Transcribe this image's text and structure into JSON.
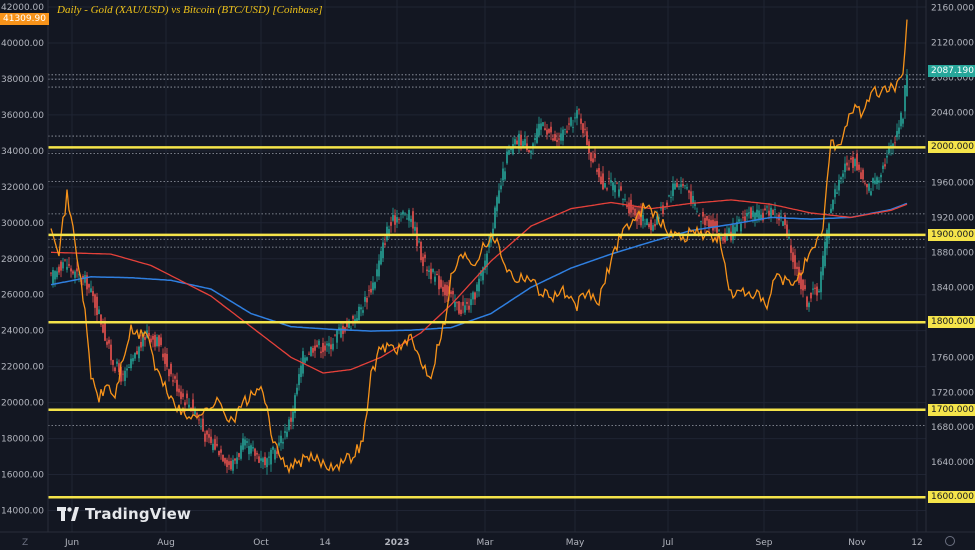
{
  "chart_data": {
    "type": "line",
    "title": "Daily - Gold (XAU/USD) vs Bitcoin (BTC/USD) [Coinbase]",
    "brand": "TradingView",
    "x_tick_labels": [
      "Jun",
      "Aug",
      "Oct",
      "14",
      "2023",
      "Mar",
      "May",
      "Jul",
      "Sep",
      "Nov",
      "12"
    ],
    "left_axis": {
      "series": "Bitcoin (BTC/USD)",
      "range": [
        14000,
        42000
      ],
      "ticks": [
        "42000.00",
        "40000.00",
        "38000.00",
        "36000.00",
        "34000.00",
        "32000.00",
        "30000.00",
        "28000.00",
        "26000.00",
        "24000.00",
        "22000.00",
        "20000.00",
        "18000.00",
        "16000.00",
        "14000.00"
      ],
      "last_price_label": "41309.90"
    },
    "right_axis": {
      "series": "Gold (XAU/USD)",
      "range": [
        1590,
        2160
      ],
      "ticks": [
        "2160.000",
        "2120.000",
        "2080.000",
        "2040.000",
        "2000.000",
        "1960.000",
        "1920.000",
        "1880.000",
        "1840.000",
        "1800.000",
        "1760.000",
        "1720.000",
        "1700.000",
        "1680.000",
        "1640.000",
        "1600.000"
      ],
      "last_price_label": "2087.190"
    },
    "horizontal_levels": [
      {
        "value": 2000,
        "label": "2000.000"
      },
      {
        "value": 1900,
        "label": "1900.000"
      },
      {
        "value": 1800,
        "label": "1800.000"
      },
      {
        "value": 1700,
        "label": "1700.000"
      },
      {
        "value": 1600,
        "label": "1600.000"
      }
    ],
    "dotted_levels": [
      2083,
      2078,
      2069,
      2013,
      1993,
      1961,
      1924,
      1895,
      1886,
      1682
    ],
    "gold_candles_anchors": [
      [
        0,
        1850
      ],
      [
        6,
        1870
      ],
      [
        12,
        1855
      ],
      [
        18,
        1845
      ],
      [
        24,
        1810
      ],
      [
        30,
        1760
      ],
      [
        36,
        1735
      ],
      [
        42,
        1760
      ],
      [
        48,
        1790
      ],
      [
        54,
        1775
      ],
      [
        60,
        1740
      ],
      [
        66,
        1715
      ],
      [
        72,
        1700
      ],
      [
        78,
        1665
      ],
      [
        84,
        1655
      ],
      [
        90,
        1635
      ],
      [
        96,
        1660
      ],
      [
        102,
        1650
      ],
      [
        108,
        1640
      ],
      [
        114,
        1660
      ],
      [
        120,
        1690
      ],
      [
        126,
        1760
      ],
      [
        132,
        1775
      ],
      [
        138,
        1770
      ],
      [
        144,
        1790
      ],
      [
        150,
        1800
      ],
      [
        156,
        1820
      ],
      [
        162,
        1850
      ],
      [
        168,
        1905
      ],
      [
        174,
        1925
      ],
      [
        180,
        1920
      ],
      [
        186,
        1870
      ],
      [
        192,
        1850
      ],
      [
        198,
        1835
      ],
      [
        204,
        1815
      ],
      [
        210,
        1820
      ],
      [
        216,
        1860
      ],
      [
        222,
        1925
      ],
      [
        228,
        1990
      ],
      [
        234,
        2010
      ],
      [
        240,
        2000
      ],
      [
        246,
        2030
      ],
      [
        252,
        2005
      ],
      [
        258,
        2020
      ],
      [
        264,
        2040
      ],
      [
        270,
        1990
      ],
      [
        276,
        1960
      ],
      [
        282,
        1955
      ],
      [
        288,
        1935
      ],
      [
        294,
        1920
      ],
      [
        300,
        1910
      ],
      [
        306,
        1930
      ],
      [
        312,
        1960
      ],
      [
        318,
        1955
      ],
      [
        324,
        1920
      ],
      [
        330,
        1915
      ],
      [
        336,
        1895
      ],
      [
        342,
        1905
      ],
      [
        348,
        1925
      ],
      [
        354,
        1920
      ],
      [
        360,
        1930
      ],
      [
        366,
        1915
      ],
      [
        372,
        1865
      ],
      [
        378,
        1825
      ],
      [
        384,
        1840
      ],
      [
        390,
        1935
      ],
      [
        396,
        1975
      ],
      [
        402,
        1985
      ],
      [
        408,
        1950
      ],
      [
        414,
        1970
      ],
      [
        420,
        2000
      ],
      [
        426,
        2040
      ],
      [
        428,
        2090
      ]
    ],
    "bitcoin_line_anchors": [
      [
        0,
        30000
      ],
      [
        4,
        28500
      ],
      [
        8,
        31500
      ],
      [
        12,
        29000
      ],
      [
        16,
        26000
      ],
      [
        20,
        21500
      ],
      [
        24,
        20200
      ],
      [
        28,
        21000
      ],
      [
        32,
        20300
      ],
      [
        36,
        22500
      ],
      [
        40,
        24000
      ],
      [
        44,
        23700
      ],
      [
        48,
        24000
      ],
      [
        52,
        22000
      ],
      [
        56,
        21000
      ],
      [
        60,
        20300
      ],
      [
        64,
        19600
      ],
      [
        68,
        19100
      ],
      [
        72,
        19500
      ],
      [
        76,
        19300
      ],
      [
        80,
        19900
      ],
      [
        84,
        20000
      ],
      [
        88,
        19300
      ],
      [
        92,
        19100
      ],
      [
        96,
        20000
      ],
      [
        100,
        20300
      ],
      [
        104,
        20900
      ],
      [
        108,
        19600
      ],
      [
        112,
        17500
      ],
      [
        116,
        16700
      ],
      [
        120,
        16400
      ],
      [
        126,
        16800
      ],
      [
        132,
        16900
      ],
      [
        138,
        16500
      ],
      [
        144,
        16600
      ],
      [
        150,
        17000
      ],
      [
        156,
        17800
      ],
      [
        160,
        21500
      ],
      [
        164,
        22800
      ],
      [
        168,
        23200
      ],
      [
        174,
        23000
      ],
      [
        180,
        23500
      ],
      [
        186,
        22100
      ],
      [
        190,
        21500
      ],
      [
        194,
        23500
      ],
      [
        198,
        25000
      ],
      [
        200,
        27000
      ],
      [
        204,
        28000
      ],
      [
        208,
        28200
      ],
      [
        212,
        27700
      ],
      [
        216,
        28900
      ],
      [
        222,
        29200
      ],
      [
        228,
        27500
      ],
      [
        232,
        26900
      ],
      [
        238,
        27100
      ],
      [
        244,
        26300
      ],
      [
        250,
        25900
      ],
      [
        256,
        26200
      ],
      [
        262,
        25300
      ],
      [
        268,
        26100
      ],
      [
        274,
        25600
      ],
      [
        280,
        27900
      ],
      [
        286,
        29700
      ],
      [
        292,
        30100
      ],
      [
        298,
        31200
      ],
      [
        304,
        30100
      ],
      [
        310,
        29400
      ],
      [
        316,
        29200
      ],
      [
        322,
        29600
      ],
      [
        328,
        29300
      ],
      [
        334,
        29100
      ],
      [
        340,
        26000
      ],
      [
        346,
        26100
      ],
      [
        352,
        26100
      ],
      [
        358,
        25200
      ],
      [
        362,
        27000
      ],
      [
        366,
        26800
      ],
      [
        370,
        26500
      ],
      [
        374,
        27200
      ],
      [
        378,
        27900
      ],
      [
        382,
        28500
      ],
      [
        386,
        29800
      ],
      [
        390,
        34500
      ],
      [
        394,
        34300
      ],
      [
        398,
        35500
      ],
      [
        402,
        36700
      ],
      [
        406,
        35900
      ],
      [
        410,
        37300
      ],
      [
        414,
        37200
      ],
      [
        418,
        37500
      ],
      [
        422,
        37600
      ],
      [
        426,
        38000
      ],
      [
        428,
        41300
      ]
    ],
    "gold_ma_fast_anchors": [
      [
        0,
        1880
      ],
      [
        30,
        1878
      ],
      [
        50,
        1865
      ],
      [
        80,
        1830
      ],
      [
        100,
        1795
      ],
      [
        120,
        1760
      ],
      [
        136,
        1742
      ],
      [
        150,
        1746
      ],
      [
        165,
        1760
      ],
      [
        185,
        1788
      ],
      [
        200,
        1820
      ],
      [
        220,
        1870
      ],
      [
        240,
        1910
      ],
      [
        260,
        1930
      ],
      [
        280,
        1937
      ],
      [
        300,
        1930
      ],
      [
        320,
        1936
      ],
      [
        340,
        1940
      ],
      [
        360,
        1935
      ],
      [
        380,
        1925
      ],
      [
        400,
        1920
      ],
      [
        420,
        1928
      ],
      [
        428,
        1935
      ]
    ],
    "gold_ma_slow_anchors": [
      [
        0,
        1843
      ],
      [
        20,
        1852
      ],
      [
        40,
        1851
      ],
      [
        60,
        1848
      ],
      [
        80,
        1838
      ],
      [
        100,
        1810
      ],
      [
        120,
        1795
      ],
      [
        140,
        1792
      ],
      [
        160,
        1790
      ],
      [
        180,
        1791
      ],
      [
        200,
        1794
      ],
      [
        220,
        1810
      ],
      [
        240,
        1840
      ],
      [
        260,
        1862
      ],
      [
        280,
        1878
      ],
      [
        300,
        1892
      ],
      [
        320,
        1905
      ],
      [
        340,
        1912
      ],
      [
        360,
        1920
      ],
      [
        380,
        1918
      ],
      [
        400,
        1920
      ],
      [
        420,
        1929
      ],
      [
        428,
        1936
      ]
    ]
  }
}
